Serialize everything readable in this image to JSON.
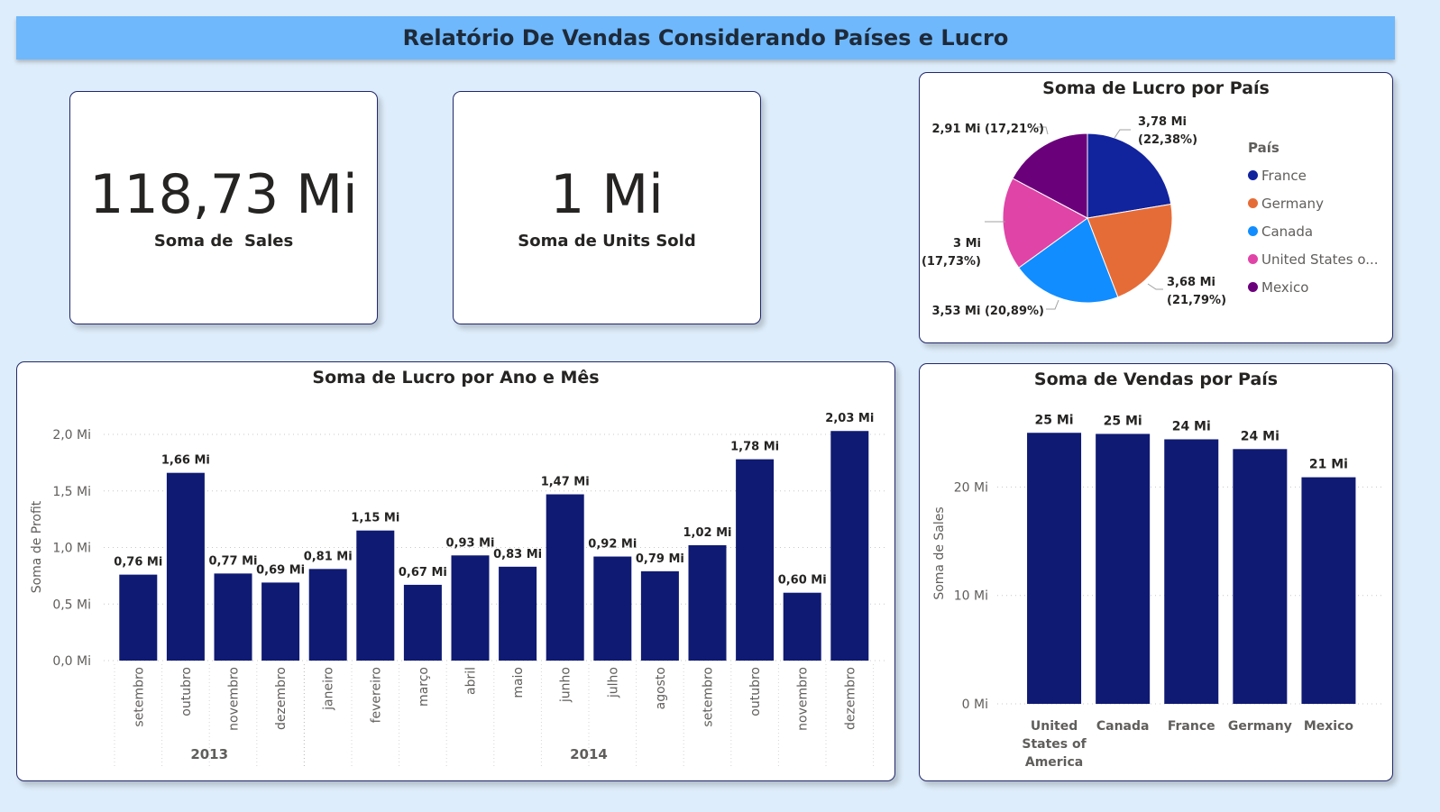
{
  "header": {
    "title": "Relatório De Vendas Considerando Países e Lucro"
  },
  "kpis": [
    {
      "value": "118,73 Mi",
      "label": "Soma de  Sales"
    },
    {
      "value": "1 Mi",
      "label": "Soma de Units Sold"
    }
  ],
  "pie": {
    "title": "Soma de Lucro por País",
    "legend_title": "País",
    "legend": [
      "France",
      "Germany",
      "Canada",
      "United States o...",
      "Mexico"
    ],
    "labels": [
      [
        "3,78 Mi",
        "(22,38%)"
      ],
      [
        "3,68 Mi",
        "(21,79%)"
      ],
      [
        "3,53 Mi (20,89%)"
      ],
      [
        "3 Mi",
        "(17,73%)"
      ],
      [
        "2,91 Mi (17,21%)"
      ]
    ]
  },
  "line": {
    "title": "Soma de Lucro por Ano e Mês",
    "ylabel": "Soma de Profit",
    "ticks": [
      "0,0 Mi",
      "0,5 Mi",
      "1,0 Mi",
      "1,5 Mi",
      "2,0 Mi"
    ],
    "months": [
      "setembro",
      "outubro",
      "novembro",
      "dezembro",
      "janeiro",
      "fevereiro",
      "março",
      "abril",
      "maio",
      "junho",
      "julho",
      "agosto",
      "setembro",
      "outubro",
      "novembro",
      "dezembro"
    ],
    "value_labels": [
      "0,76 Mi",
      "1,66 Mi",
      "0,77 Mi",
      "0,69 Mi",
      "0,81 Mi",
      "1,15 Mi",
      "0,67 Mi",
      "0,93 Mi",
      "0,83 Mi",
      "1,47 Mi",
      "0,92 Mi",
      "0,79 Mi",
      "1,02 Mi",
      "1,78 Mi",
      "0,60 Mi",
      "2,03 Mi"
    ],
    "years": [
      "2013",
      "2014"
    ]
  },
  "bars": {
    "title": "Soma de Vendas por País",
    "ylabel": "Soma de Sales",
    "ticks": [
      "0 Mi",
      "10 Mi",
      "20 Mi"
    ],
    "categories": [
      [
        "United",
        "States of",
        "America"
      ],
      [
        "Canada"
      ],
      [
        "France"
      ],
      [
        "Germany"
      ],
      [
        "Mexico"
      ]
    ],
    "value_labels": [
      "25 Mi",
      "25 Mi",
      "24 Mi",
      "24 Mi",
      "21 Mi"
    ]
  },
  "chart_data": [
    {
      "type": "pie",
      "title": "Soma de Lucro por País",
      "categories": [
        "France",
        "Germany",
        "Canada",
        "United States of America",
        "Mexico"
      ],
      "values": [
        3.78,
        3.68,
        3.53,
        3.0,
        2.91
      ],
      "percentages": [
        22.38,
        21.79,
        20.89,
        17.73,
        17.21
      ],
      "colors": [
        "#12239e",
        "#e66c37",
        "#118dff",
        "#e044a7",
        "#6b007b"
      ],
      "legend": "right"
    },
    {
      "type": "bar",
      "title": "Soma de Lucro por Ano e Mês",
      "ylabel": "Soma de Profit",
      "categories": [
        "2013 setembro",
        "2013 outubro",
        "2013 novembro",
        "2013 dezembro",
        "2014 janeiro",
        "2014 fevereiro",
        "2014 março",
        "2014 abril",
        "2014 maio",
        "2014 junho",
        "2014 julho",
        "2014 agosto",
        "2014 setembro",
        "2014 outubro",
        "2014 novembro",
        "2014 dezembro"
      ],
      "values": [
        0.76,
        1.66,
        0.77,
        0.69,
        0.81,
        1.15,
        0.67,
        0.93,
        0.83,
        1.47,
        0.92,
        0.79,
        1.02,
        1.78,
        0.6,
        2.03
      ],
      "ylim": [
        0,
        2.0
      ],
      "grid": true,
      "color": "#0f1a73"
    },
    {
      "type": "bar",
      "title": "Soma de Vendas por País",
      "ylabel": "Soma de Sales",
      "categories": [
        "United States of America",
        "Canada",
        "France",
        "Germany",
        "Mexico"
      ],
      "values": [
        25.0,
        24.9,
        24.4,
        23.5,
        20.9
      ],
      "ylim": [
        0,
        20
      ],
      "grid": true,
      "color": "#0f1a73"
    }
  ]
}
